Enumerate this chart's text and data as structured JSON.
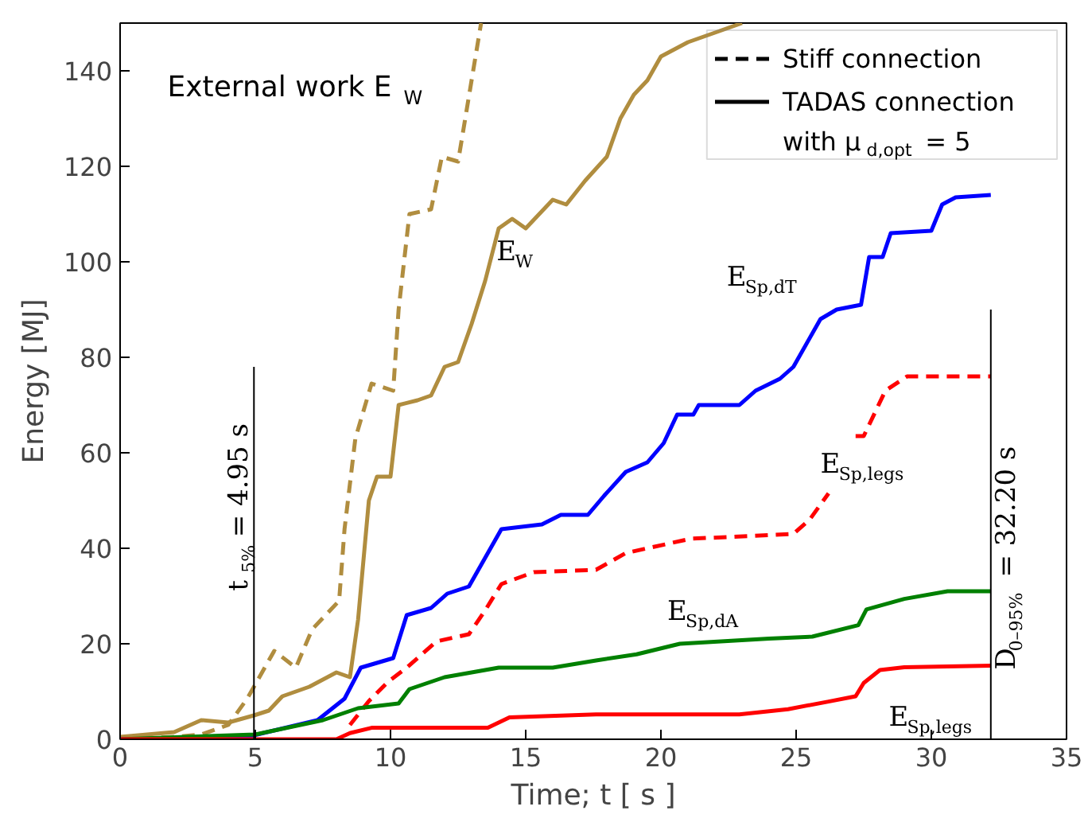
{
  "chart_data": {
    "type": "line",
    "xlabel": "Time; t [ s ]",
    "ylabel": "Energy [MJ]",
    "xlim": [
      0,
      35
    ],
    "ylim": [
      0,
      150
    ],
    "xticks": [
      0,
      5,
      10,
      15,
      20,
      25,
      30,
      35
    ],
    "yticks": [
      0,
      20,
      40,
      60,
      80,
      100,
      120,
      140
    ],
    "grid": false,
    "legend": "top right",
    "series": [
      {
        "name": "Stiff connection",
        "color": "#000000",
        "line_style": "dashed"
      },
      {
        "name": "TADAS connection with μ$_{d,opt}$ = 5",
        "color": "#000000",
        "line_style": "solid"
      },
      {
        "color": "#b08d3f",
        "line_style": "dashed",
        "x": [
          0,
          2,
          3,
          4,
          4.7,
          5.7,
          6.5,
          7.1,
          8.1,
          8.3,
          8.7,
          9.3,
          10.1,
          10.3,
          10.7,
          11.5,
          11.9,
          12.5,
          13.35
        ],
        "values": [
          0,
          0.5,
          1,
          3,
          8.5,
          18.5,
          15,
          23,
          29,
          44,
          63,
          74.5,
          73,
          90,
          110,
          111,
          122,
          121,
          150
        ]
      },
      {
        "color": "#b08d3f",
        "line_style": "solid",
        "x": [
          0,
          1,
          2,
          3,
          4,
          4.95,
          5.5,
          6,
          7,
          8,
          8.5,
          8.8,
          9.2,
          9.5,
          10,
          10.3,
          11,
          11.5,
          12,
          12.5,
          13,
          13.5,
          14,
          14.5,
          15,
          16,
          16.5,
          17.2,
          18,
          18.5,
          19,
          19.5,
          20,
          21,
          22,
          23
        ],
        "values": [
          0.5,
          1,
          1.5,
          4,
          3.5,
          5,
          6,
          9,
          11,
          14,
          13,
          25,
          50,
          55,
          55,
          70,
          71,
          72,
          78,
          79,
          87,
          96,
          107,
          109,
          107,
          113,
          112,
          117,
          122,
          130,
          135,
          138,
          143,
          146,
          148,
          150
        ]
      },
      {
        "color": "#0000ff",
        "line_style": "solid",
        "x": [
          0,
          4.7,
          7.3,
          8.3,
          8.9,
          10.1,
          10.6,
          11.5,
          12.1,
          12.9,
          14.1,
          15.6,
          16.3,
          17.3,
          17.9,
          18.7,
          19.5,
          20.1,
          20.6,
          21.2,
          21.4,
          22.9,
          23.5,
          24.4,
          24.9,
          25.9,
          26.5,
          27.4,
          27.7,
          28.2,
          28.5,
          30,
          30.4,
          30.9,
          32.2
        ],
        "values": [
          0,
          0.5,
          4,
          8.5,
          15,
          17,
          26,
          27.5,
          30.5,
          32,
          44,
          45,
          47,
          47,
          51,
          56,
          58,
          62,
          68,
          68,
          70,
          70,
          73,
          75.5,
          78,
          88,
          90,
          91,
          101,
          101,
          106,
          106.5,
          112,
          113.5,
          114
        ]
      },
      {
        "color": "#ff0000",
        "line_style": "dashed",
        "x": [
          8.5,
          9.2,
          9.9,
          10.6,
          11.7,
          12.9,
          13.5,
          14.1,
          15.3,
          17.6,
          18.7,
          21.1,
          24.9,
          25.5,
          26.2,
          26.8,
          27.2,
          27.5,
          28.3,
          29.1,
          30.8,
          32.2
        ],
        "values": [
          3,
          8,
          12,
          15,
          20.5,
          22,
          27,
          32.5,
          35,
          35.5,
          39,
          42,
          43,
          46,
          51.5,
          null,
          63.5,
          63.5,
          73,
          76,
          76,
          76
        ]
      },
      {
        "color": "#008000",
        "line_style": "solid",
        "x": [
          0,
          5,
          7.5,
          8.8,
          10.3,
          10.7,
          12,
          14,
          16,
          17.6,
          19.1,
          20.7,
          24,
          25.6,
          27.3,
          27.6,
          29,
          30.6,
          32.2
        ],
        "values": [
          0,
          1,
          4,
          6.5,
          7.5,
          10.5,
          13,
          15,
          15,
          16.5,
          17.8,
          20,
          21.1,
          21.5,
          23.9,
          27.2,
          29.4,
          31,
          31
        ]
      },
      {
        "color": "#ff0000",
        "line_style": "solid",
        "x": [
          0,
          8,
          8.5,
          9.3,
          13.6,
          14.4,
          17.6,
          22.9,
          24.7,
          26.2,
          27.2,
          27.5,
          28.1,
          29,
          32.2
        ],
        "values": [
          0,
          0,
          1.3,
          2.4,
          2.4,
          4.6,
          5.2,
          5.2,
          6.3,
          7.9,
          9,
          11.8,
          14.5,
          15.1,
          15.4
        ]
      }
    ],
    "ref_lines": [
      {
        "axis": "x",
        "value": 4.95,
        "label": "t$_{5%}$ = 4.95 s",
        "color": "#000000"
      },
      {
        "axis": "x",
        "value": 32.2,
        "label": "D$_{0–95%}$ = 32.20 s",
        "color": "#000000"
      }
    ],
    "annotations": [
      "External work E$_{W}$",
      {
        "text": "E$_{W}$",
        "x": 13.5,
        "y": 96
      },
      {
        "text": "E$_{Sp,dT}$",
        "x": 27.55,
        "y": 96
      },
      {
        "text": "E$_{Sp,legs}$",
        "x": 26.2,
        "y": 51.5
      },
      {
        "text": "E$_{Sp,dA}$",
        "x": 25.0,
        "y": 21.3
      },
      {
        "text": "E$_{Sp,legs}$",
        "x": 29.9,
        "y": 15.2
      }
    ]
  }
}
